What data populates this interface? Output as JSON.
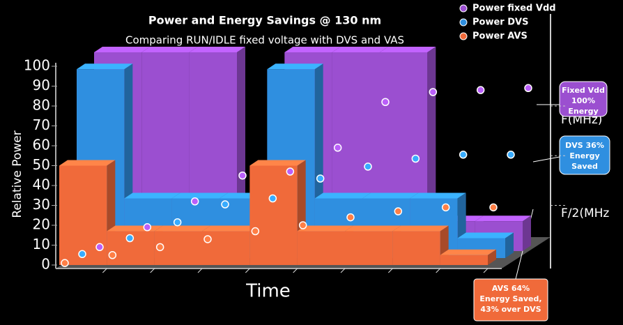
{
  "chart_data": {
    "type": "step3d",
    "title": "Power and Energy Savings @ 130 nm",
    "subtitle": "Comparing RUN/IDLE fixed voltage with DVS and VAS",
    "y_label": "Relative Power",
    "x_label": "Time",
    "categories": [
      null,
      null,
      null,
      null,
      null,
      null,
      null,
      null,
      null
    ],
    "ylim": [
      0,
      100
    ],
    "yticks": [
      0,
      10,
      20,
      30,
      40,
      50,
      60,
      70,
      80,
      90,
      100
    ],
    "legend": "top-right",
    "series": [
      {
        "name": "Power fixed Vdd",
        "color": "#9b4fd0",
        "values": [
          100,
          100,
          100,
          15,
          100,
          100,
          100,
          15,
          15
        ],
        "energy": [
          2,
          12,
          25,
          38,
          40,
          52,
          75,
          80,
          81,
          82
        ]
      },
      {
        "name": "Power DVS",
        "color": "#2f8fe0",
        "values": [
          95,
          30,
          30,
          30,
          95,
          30,
          30,
          30,
          10
        ],
        "energy": [
          2,
          10,
          18,
          27,
          30,
          40,
          46,
          50,
          52,
          52
        ]
      },
      {
        "name": "Power AVS",
        "color": "#f06a3a",
        "values": [
          50,
          17,
          17,
          17,
          50,
          17,
          17,
          17,
          5
        ],
        "energy": [
          1,
          5,
          9,
          13,
          17,
          20,
          24,
          27,
          29,
          29
        ]
      }
    ],
    "annotations": {
      "fixed": [
        "Fixed Vdd",
        "100%",
        "Energy"
      ],
      "dvs": [
        "DVS 36%",
        "Energy",
        "Saved"
      ],
      "avs": [
        "AVS 64%",
        "Energy Saved,",
        "43% over DVS"
      ],
      "f_full": "F(MHz)",
      "f_half": "F/2(MHz"
    }
  }
}
